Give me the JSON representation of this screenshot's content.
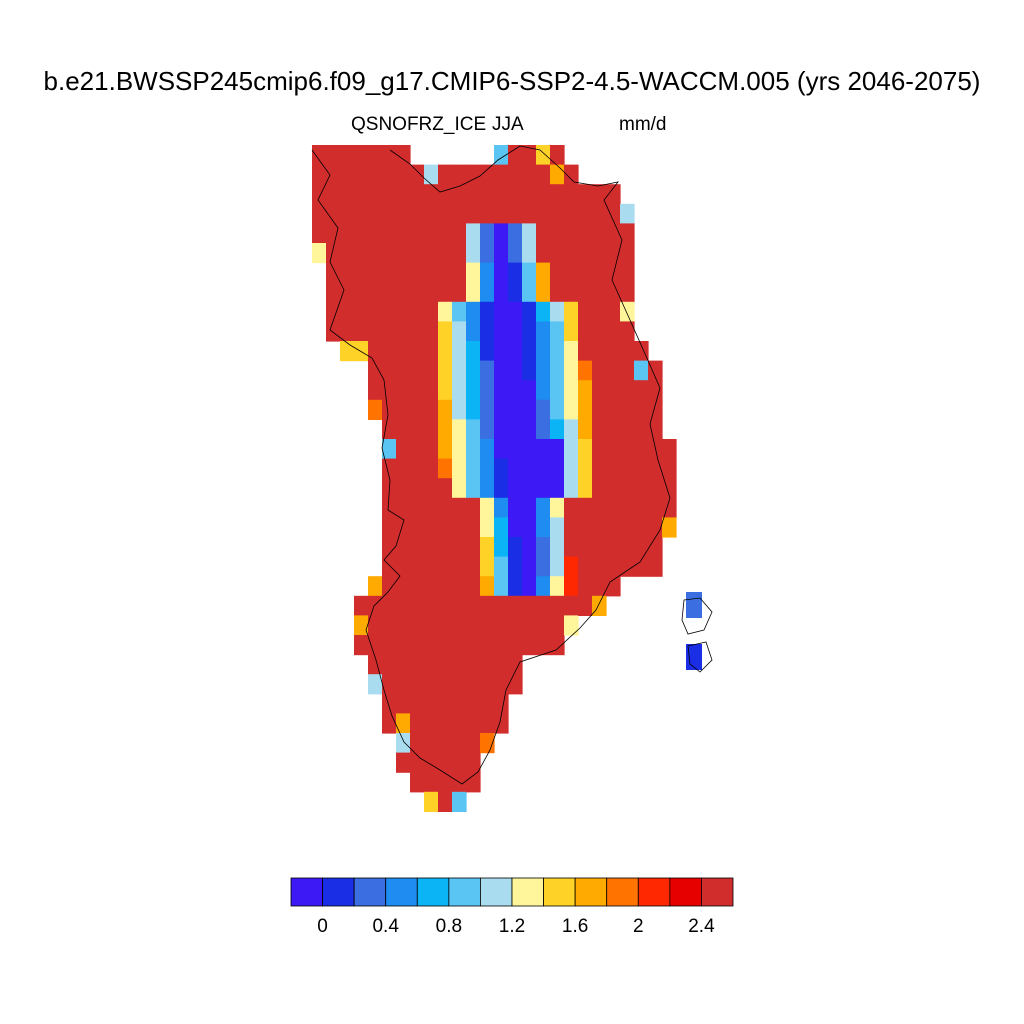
{
  "title": "b.e21.BWSSP245cmip6.f09_g17.CMIP6-SSP2-4.5-WACCM.005 (yrs 2046-2075)",
  "subtitle_left": "QSNOFRZ_ICE",
  "subtitle_center": "JJA",
  "subtitle_right": "mm/d",
  "colorbar": {
    "colors": [
      "#3c19f5",
      "#1a2ee6",
      "#3b6ee0",
      "#1e8cf0",
      "#0ab4f5",
      "#5ac4f2",
      "#aadcf0",
      "#fff59b",
      "#ffd228",
      "#ffaa00",
      "#ff7300",
      "#ff2800",
      "#e60000",
      "#d22d2d"
    ],
    "tick_labels": [
      "0",
      "0.4",
      "0.8",
      "1.2",
      "1.6",
      "2",
      "2.4"
    ],
    "levels": [
      -0.1,
      0.1,
      0.2,
      0.3,
      0.4,
      0.5,
      0.6,
      0.7,
      0.8,
      0.9,
      1.0,
      1.1,
      1.2,
      1.3,
      1.4,
      1.5,
      1.6,
      1.7,
      1.8,
      1.9,
      2.0,
      2.1,
      2.2,
      2.3,
      2.4,
      2.5
    ]
  },
  "map_data": {
    "variable": "QSNOFRZ_ICE",
    "season": "JJA",
    "units": "mm/d",
    "region": "Greenland",
    "pattern": {
      "coast_value": 2.5,
      "interior_min": 0.3,
      "summit_min": 0.1
    }
  }
}
